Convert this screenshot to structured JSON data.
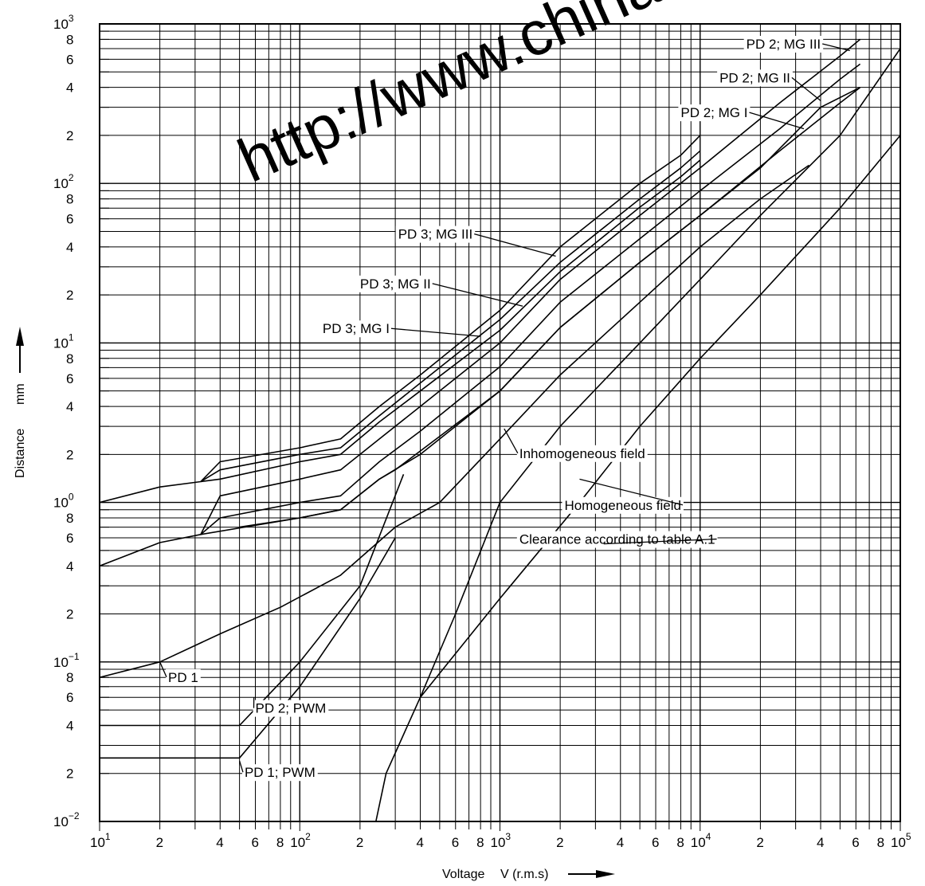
{
  "watermark": "http://www.china",
  "chart_data": {
    "type": "line",
    "xscale": "log",
    "yscale": "log",
    "xlim": [
      10,
      100000
    ],
    "ylim": [
      0.01,
      1000
    ],
    "xlabel": "Voltage",
    "xunit": "V (r.m.s)",
    "ylabel": "Distance",
    "yunit": "mm",
    "grid": true,
    "x_ticks_major": [
      {
        "base": "10",
        "exp": "1"
      },
      {
        "base": "10",
        "exp": "2"
      },
      {
        "base": "10",
        "exp": "3"
      },
      {
        "base": "10",
        "exp": "4"
      },
      {
        "base": "10",
        "exp": "5"
      }
    ],
    "x_ticks_minor": [
      "2",
      "4",
      "6",
      "8"
    ],
    "y_ticks_major": [
      {
        "base": "10",
        "exp": "−2"
      },
      {
        "base": "10",
        "exp": "−1"
      },
      {
        "base": "10",
        "exp": "0"
      },
      {
        "base": "10",
        "exp": "1"
      },
      {
        "base": "10",
        "exp": "2"
      },
      {
        "base": "10",
        "exp": "3"
      }
    ],
    "y_ticks_minor": [
      "2",
      "4",
      "6",
      "8"
    ],
    "series": [
      {
        "name": "PD 3; MG III",
        "points": [
          [
            10,
            1.0
          ],
          [
            20,
            1.25
          ],
          [
            32,
            1.35
          ],
          [
            40,
            1.8
          ],
          [
            100,
            2.2
          ],
          [
            160,
            2.5
          ],
          [
            250,
            4.0
          ],
          [
            400,
            6.3
          ],
          [
            1000,
            16
          ],
          [
            2000,
            40
          ],
          [
            5000,
            100
          ],
          [
            8000,
            150
          ],
          [
            10000,
            200
          ]
        ]
      },
      {
        "name": "PD 3; MG II",
        "points": [
          [
            32,
            1.35
          ],
          [
            40,
            1.6
          ],
          [
            100,
            2.0
          ],
          [
            160,
            2.2
          ],
          [
            250,
            3.5
          ],
          [
            400,
            5.6
          ],
          [
            1000,
            14
          ],
          [
            2000,
            32
          ],
          [
            5000,
            80
          ],
          [
            8000,
            125
          ],
          [
            10000,
            160
          ]
        ]
      },
      {
        "name": "PD 3; MG I",
        "points": [
          [
            32,
            1.35
          ],
          [
            40,
            1.4
          ],
          [
            100,
            1.8
          ],
          [
            160,
            2.0
          ],
          [
            250,
            3.2
          ],
          [
            400,
            5.0
          ],
          [
            1000,
            12
          ],
          [
            2000,
            28
          ],
          [
            5000,
            71
          ],
          [
            8000,
            110
          ],
          [
            10000,
            140
          ]
        ]
      },
      {
        "name": "PD 2; MG III",
        "points": [
          [
            32,
            0.63
          ],
          [
            40,
            1.1
          ],
          [
            100,
            1.4
          ],
          [
            160,
            1.6
          ],
          [
            250,
            2.5
          ],
          [
            400,
            4.0
          ],
          [
            1000,
            10
          ],
          [
            2000,
            25
          ],
          [
            5000,
            63
          ],
          [
            10000,
            125
          ],
          [
            25000,
            320
          ],
          [
            50000,
            630
          ],
          [
            63000,
            800
          ]
        ]
      },
      {
        "name": "PD 2; MG II",
        "points": [
          [
            32,
            0.63
          ],
          [
            40,
            0.8
          ],
          [
            100,
            1.0
          ],
          [
            160,
            1.1
          ],
          [
            250,
            1.8
          ],
          [
            400,
            2.8
          ],
          [
            1000,
            7.1
          ],
          [
            2000,
            18
          ],
          [
            5000,
            45
          ],
          [
            10000,
            90
          ],
          [
            25000,
            220
          ],
          [
            50000,
            450
          ],
          [
            63000,
            560
          ]
        ]
      },
      {
        "name": "PD 2; MG I",
        "points": [
          [
            10,
            0.4
          ],
          [
            20,
            0.56
          ],
          [
            32,
            0.63
          ],
          [
            100,
            0.8
          ],
          [
            160,
            0.9
          ],
          [
            250,
            1.4
          ],
          [
            400,
            2.0
          ],
          [
            1000,
            5.0
          ],
          [
            2000,
            12.5
          ],
          [
            5000,
            32
          ],
          [
            10000,
            63
          ],
          [
            25000,
            160
          ],
          [
            50000,
            320
          ],
          [
            63000,
            400
          ]
        ]
      },
      {
        "name": "Clearance according to table A.1",
        "points": [
          [
            50,
            0.7
          ],
          [
            100,
            0.8
          ],
          [
            160,
            0.9
          ],
          [
            250,
            1.4
          ],
          [
            300,
            1.6
          ],
          [
            1000,
            5.0
          ],
          [
            2000,
            12.5
          ],
          [
            5000,
            32
          ],
          [
            10000,
            63
          ],
          [
            20000,
            125
          ],
          [
            40000,
            300
          ],
          [
            63000,
            400
          ]
        ]
      },
      {
        "name": "PD 1",
        "points": [
          [
            10,
            0.08
          ],
          [
            20,
            0.1
          ],
          [
            40,
            0.15
          ],
          [
            80,
            0.22
          ],
          [
            160,
            0.35
          ],
          [
            300,
            0.7
          ],
          [
            500,
            1.0
          ],
          [
            1000,
            2.5
          ],
          [
            2000,
            6.3
          ],
          [
            5000,
            18
          ],
          [
            10000,
            40
          ],
          [
            20000,
            80
          ],
          [
            35000,
            130
          ]
        ]
      },
      {
        "name": "PD 2; PWM",
        "points": [
          [
            10,
            0.04
          ],
          [
            50,
            0.04
          ],
          [
            100,
            0.1
          ],
          [
            200,
            0.3
          ],
          [
            330,
            1.5
          ]
        ]
      },
      {
        "name": "PD 1; PWM",
        "points": [
          [
            10,
            0.025
          ],
          [
            50,
            0.025
          ],
          [
            100,
            0.07
          ],
          [
            200,
            0.25
          ],
          [
            300,
            0.6
          ]
        ]
      },
      {
        "name": "Inhomogeneous field",
        "points": [
          [
            240,
            0.01
          ],
          [
            270,
            0.02
          ],
          [
            400,
            0.06
          ],
          [
            600,
            0.2
          ],
          [
            1000,
            1.0
          ],
          [
            2000,
            3.0
          ],
          [
            5000,
            10
          ],
          [
            10000,
            25
          ],
          [
            20000,
            63
          ],
          [
            50000,
            200
          ],
          [
            100000,
            700
          ]
        ]
      },
      {
        "name": "Homogeneous field",
        "points": [
          [
            400,
            0.06
          ],
          [
            1000,
            0.25
          ],
          [
            2500,
            1.0
          ],
          [
            5000,
            3.0
          ],
          [
            10000,
            8.0
          ],
          [
            20000,
            20
          ],
          [
            50000,
            70
          ],
          [
            100000,
            200
          ]
        ]
      }
    ],
    "annotations": [
      "PD 2; MG III",
      "PD 2; MG II",
      "PD 2; MG I",
      "PD 3; MG III",
      "PD 3; MG II",
      "PD 3; MG I",
      "Inhomogeneous field",
      "Homogeneous field",
      "Clearance according to table A.1",
      "PD 1",
      "PD 2; PWM",
      "PD 1; PWM"
    ]
  }
}
